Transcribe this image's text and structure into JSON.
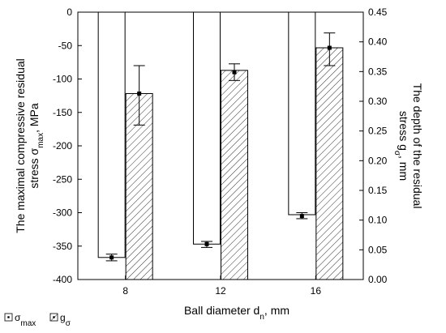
{
  "chart_data": {
    "type": "bar",
    "categories": [
      "8",
      "12",
      "16"
    ],
    "xlabel": "Ball diameter d_n, mm",
    "ylabel_left": "The maximal compressive residual stress σ_max, MPa",
    "ylabel_right": "The depth of the residual stress g_σ, mm",
    "left_axis": {
      "ylim": [
        -400,
        0
      ],
      "ticks": [
        0,
        -50,
        -100,
        -150,
        -200,
        -250,
        -300,
        -350,
        -400
      ]
    },
    "right_axis": {
      "ylim": [
        0.0,
        0.45
      ],
      "ticks": [
        "0.00",
        "0.05",
        "0.10",
        "0.15",
        "0.20",
        "0.25",
        "0.30",
        "0.35",
        "0.40",
        "0.45"
      ]
    },
    "series": [
      {
        "name": "σ_max",
        "axis": "left",
        "pattern": "blank",
        "bar_values": [
          -367,
          -347,
          -303
        ],
        "points": [
          -367,
          -347,
          -305
        ],
        "error_low": [
          -372,
          -352,
          -309
        ],
        "error_high": [
          -362,
          -343,
          -300
        ]
      },
      {
        "name": "g_σ",
        "axis": "right",
        "pattern": "hatched",
        "bar_values": [
          0.313,
          0.352,
          0.39
        ],
        "points": [
          0.313,
          0.349,
          0.39
        ],
        "error_low": [
          0.26,
          0.335,
          0.36
        ],
        "error_high": [
          0.36,
          0.363,
          0.415
        ]
      }
    ],
    "legend": {
      "position": "bottom-left"
    },
    "grid": false
  }
}
